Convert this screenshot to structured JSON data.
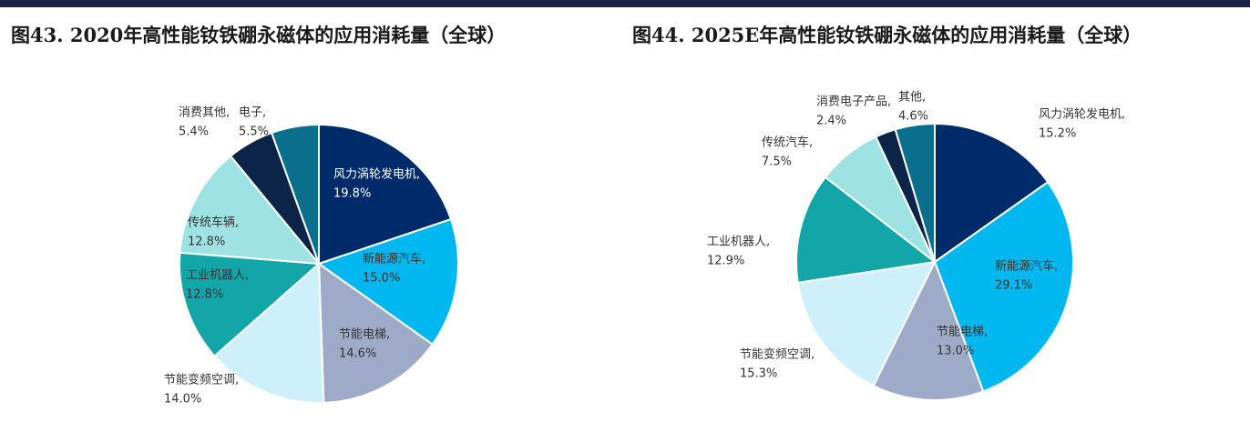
{
  "chart_data": [
    {
      "type": "pie",
      "title": "图43. 2020年高性能钕铁硼永磁体的应用消耗量（全球）",
      "categories": [
        "风力涡轮发电机,",
        "新能源汽车,",
        "节能电梯,",
        "节能变频空调,",
        "工业机器人,",
        "传统车辆,",
        "消费其他,",
        "电子,"
      ],
      "values": [
        19.8,
        15.0,
        14.6,
        14.0,
        12.8,
        12.8,
        5.4,
        5.5
      ],
      "value_labels": [
        "19.8%",
        "15.0%",
        "14.6%",
        "14.0%",
        "12.8%",
        "12.8%",
        "5.4%",
        "5.5%"
      ],
      "colors": [
        "#002b6b",
        "#00b7ef",
        "#9eabc8",
        "#cdf0fa",
        "#13a6a9",
        "#9fe2e4",
        "#0b2447",
        "#0a6f8d"
      ]
    },
    {
      "type": "pie",
      "title": "图44. 2025E年高性能钕铁硼永磁体的应用消耗量（全球）",
      "categories": [
        "风力涡轮发电机,",
        "新能源汽车,",
        "节能电梯,",
        "节能变频空调,",
        "工业机器人,",
        "传统汽车,",
        "消费电子产品,",
        "其他,"
      ],
      "values": [
        15.2,
        29.1,
        13.0,
        15.3,
        12.9,
        7.5,
        2.4,
        4.6
      ],
      "value_labels": [
        "15.2%",
        "29.1%",
        "13.0%",
        "15.3%",
        "12.9%",
        "7.5%",
        "2.4%",
        "4.6%"
      ],
      "colors": [
        "#002b6b",
        "#00b7ef",
        "#9eabc8",
        "#cdf0fa",
        "#13a6a9",
        "#9fe2e4",
        "#0b2447",
        "#0a6f8d"
      ]
    }
  ]
}
